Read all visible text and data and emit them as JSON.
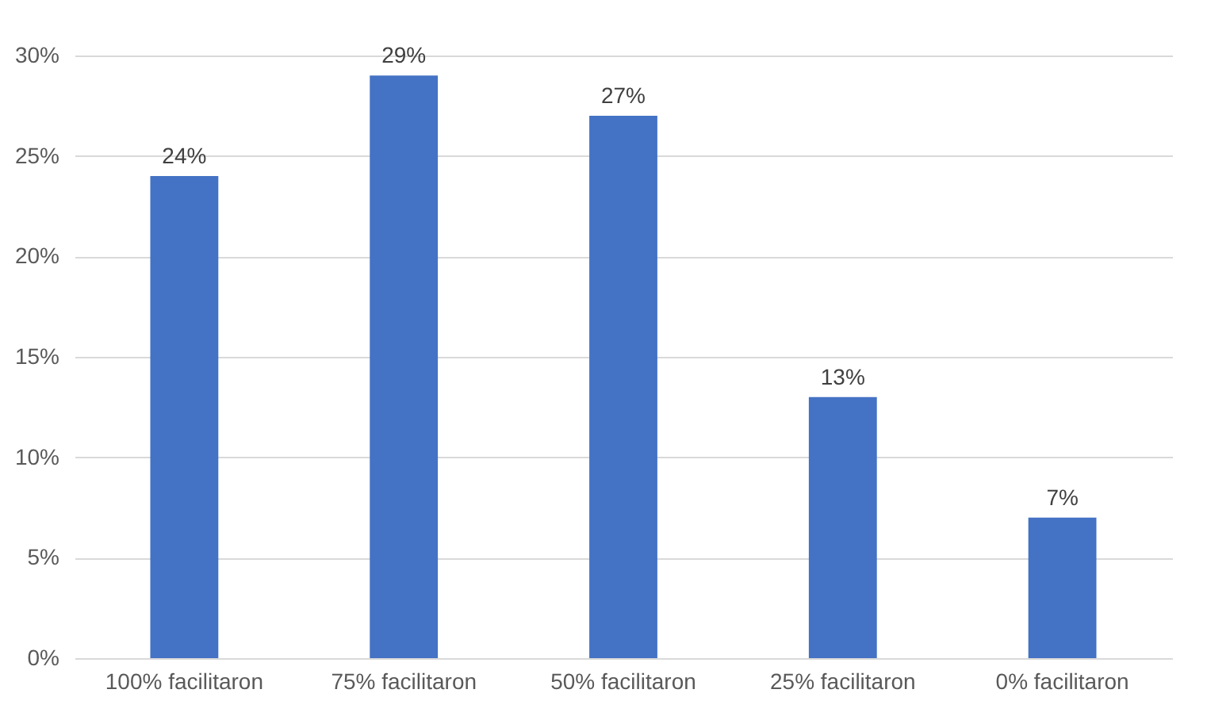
{
  "chart_data": {
    "type": "bar",
    "categories": [
      "100% facilitaron",
      "75% facilitaron",
      "50% facilitaron",
      "25% facilitaron",
      "0% facilitaron"
    ],
    "values": [
      24,
      29,
      27,
      13,
      7
    ],
    "value_labels": [
      "24%",
      "29%",
      "27%",
      "13%",
      "7%"
    ],
    "color": "#4472c4",
    "ylim": [
      0,
      30
    ],
    "yticks": [
      {
        "value": 0,
        "label": "0%"
      },
      {
        "value": 5,
        "label": "5%"
      },
      {
        "value": 10,
        "label": "10%"
      },
      {
        "value": 15,
        "label": "15%"
      },
      {
        "value": 20,
        "label": "20%"
      },
      {
        "value": 25,
        "label": "25%"
      },
      {
        "value": 30,
        "label": "30%"
      }
    ],
    "grid": "y"
  }
}
